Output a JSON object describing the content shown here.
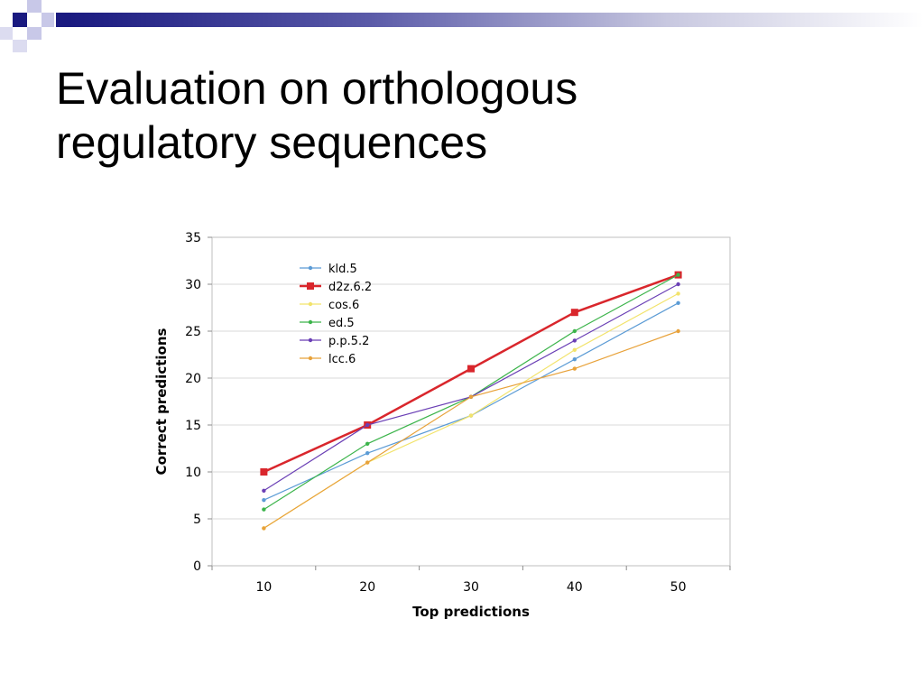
{
  "slide": {
    "title_line1": "Evaluation on orthologous",
    "title_line2": "regulatory sequences",
    "accent_colors": {
      "navy": "#1a1a80",
      "light": "#c8c8e8"
    }
  },
  "chart_data": {
    "type": "line",
    "title": "",
    "xlabel": "Top predictions",
    "ylabel": "Correct predictions",
    "x": [
      10,
      20,
      30,
      40,
      50
    ],
    "xlim": [
      5,
      55
    ],
    "ylim": [
      0,
      35
    ],
    "yticks": [
      0,
      5,
      10,
      15,
      20,
      25,
      30,
      35
    ],
    "grid": "horizontal",
    "legend": "top-left",
    "series": [
      {
        "name": "kld.5",
        "color": "#5b9bd5",
        "marker": "dot",
        "values": [
          7,
          12,
          16,
          22,
          28
        ]
      },
      {
        "name": "d2z.6.2",
        "color": "#d9262c",
        "marker": "square",
        "values": [
          10,
          15,
          21,
          27,
          31
        ]
      },
      {
        "name": "cos.6",
        "color": "#f2e36b",
        "marker": "dot",
        "values": [
          4,
          11,
          16,
          23,
          29
        ]
      },
      {
        "name": "ed.5",
        "color": "#3cb44b",
        "marker": "dot",
        "values": [
          6,
          13,
          18,
          25,
          31
        ]
      },
      {
        "name": "p.p.5.2",
        "color": "#6a3fb5",
        "marker": "dot",
        "values": [
          8,
          15,
          18,
          24,
          30
        ]
      },
      {
        "name": "lcc.6",
        "color": "#e8a23a",
        "marker": "dot",
        "values": [
          4,
          11,
          18,
          21,
          25
        ]
      }
    ]
  }
}
